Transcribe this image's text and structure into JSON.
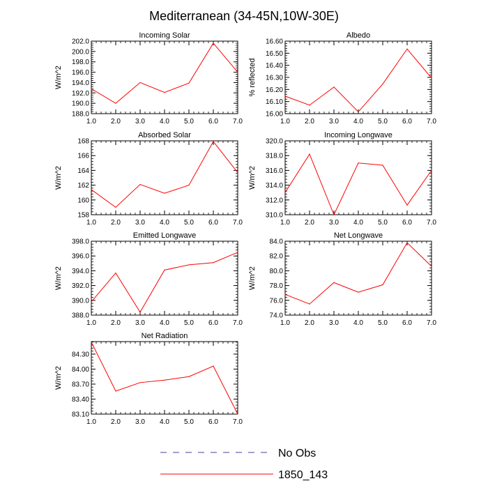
{
  "figure": {
    "title": "Mediterranean (34-45N,10W-30E)"
  },
  "legend": {
    "entries": [
      {
        "label": "No Obs",
        "color": "#4040a0",
        "style": "dashed"
      },
      {
        "label": "1850_143",
        "color": "#ff0000",
        "style": "solid"
      }
    ]
  },
  "chart_data": [
    {
      "type": "line",
      "title": "Incoming Solar",
      "xlabel": "",
      "ylabel": "W/m^2",
      "x": [
        1,
        2,
        3,
        4,
        5,
        6,
        7
      ],
      "xlim": [
        1,
        7
      ],
      "xticks": [
        "1.0",
        "2.0",
        "3.0",
        "4.0",
        "5.0",
        "6.0",
        "7.0"
      ],
      "ylim": [
        188,
        202
      ],
      "yticks": [
        188,
        190,
        192,
        194,
        196,
        198,
        200,
        202
      ],
      "ytick_labels": [
        "188.0",
        "190.0",
        "192.0",
        "194.0",
        "196.0",
        "198.0",
        "200.0",
        "202.0"
      ],
      "series": [
        {
          "name": "1850_143",
          "color": "#ff0000",
          "values": [
            192.8,
            190.0,
            194.0,
            192.1,
            193.9,
            201.6,
            196.0
          ]
        }
      ]
    },
    {
      "type": "line",
      "title": "Albedo",
      "xlabel": "",
      "ylabel": "% reflected",
      "x": [
        1,
        2,
        3,
        4,
        5,
        6,
        7
      ],
      "xlim": [
        1,
        7
      ],
      "xticks": [
        "1.0",
        "2.0",
        "3.0",
        "4.0",
        "5.0",
        "6.0",
        "7.0"
      ],
      "ylim": [
        16.0,
        16.6
      ],
      "yticks": [
        16.0,
        16.1,
        16.2,
        16.3,
        16.4,
        16.5,
        16.6
      ],
      "ytick_labels": [
        "16.00",
        "16.10",
        "16.20",
        "16.30",
        "16.40",
        "16.50",
        "16.60"
      ],
      "series": [
        {
          "name": "1850_143",
          "color": "#ff0000",
          "values": [
            16.145,
            16.07,
            16.22,
            16.015,
            16.245,
            16.535,
            16.295
          ]
        }
      ]
    },
    {
      "type": "line",
      "title": "Absorbed Solar",
      "xlabel": "",
      "ylabel": "W/m^2",
      "x": [
        1,
        2,
        3,
        4,
        5,
        6,
        7
      ],
      "xlim": [
        1,
        7
      ],
      "xticks": [
        "1.0",
        "2.0",
        "3.0",
        "4.0",
        "5.0",
        "6.0",
        "7.0"
      ],
      "ylim": [
        158,
        168
      ],
      "yticks": [
        158,
        160,
        162,
        164,
        166,
        168
      ],
      "ytick_labels": [
        "158",
        "160",
        "162",
        "164",
        "166",
        "168"
      ],
      "series": [
        {
          "name": "1850_143",
          "color": "#ff0000",
          "values": [
            161.4,
            159.0,
            162.1,
            160.9,
            162.0,
            167.9,
            163.7
          ]
        }
      ]
    },
    {
      "type": "line",
      "title": "Incoming Longwave",
      "xlabel": "",
      "ylabel": "W/m^2",
      "x": [
        1,
        2,
        3,
        4,
        5,
        6,
        7
      ],
      "xlim": [
        1,
        7
      ],
      "xticks": [
        "1.0",
        "2.0",
        "3.0",
        "4.0",
        "5.0",
        "6.0",
        "7.0"
      ],
      "ylim": [
        310,
        320
      ],
      "yticks": [
        310,
        312,
        314,
        316,
        318,
        320
      ],
      "ytick_labels": [
        "310.0",
        "312.0",
        "314.0",
        "316.0",
        "318.0",
        "320.0"
      ],
      "series": [
        {
          "name": "1850_143",
          "color": "#ff0000",
          "values": [
            313.0,
            318.2,
            310.0,
            317.0,
            316.7,
            311.3,
            316.0
          ]
        }
      ]
    },
    {
      "type": "line",
      "title": "Emitted Longwave",
      "xlabel": "",
      "ylabel": "W/m^2",
      "x": [
        1,
        2,
        3,
        4,
        5,
        6,
        7
      ],
      "xlim": [
        1,
        7
      ],
      "xticks": [
        "1.0",
        "2.0",
        "3.0",
        "4.0",
        "5.0",
        "6.0",
        "7.0"
      ],
      "ylim": [
        388,
        398
      ],
      "yticks": [
        388,
        390,
        392,
        394,
        396,
        398
      ],
      "ytick_labels": [
        "388.0",
        "390.0",
        "392.0",
        "394.0",
        "396.0",
        "398.0"
      ],
      "series": [
        {
          "name": "1850_143",
          "color": "#ff0000",
          "values": [
            389.8,
            393.7,
            388.4,
            394.1,
            394.8,
            395.1,
            396.5
          ]
        }
      ]
    },
    {
      "type": "line",
      "title": "Net Longwave",
      "xlabel": "",
      "ylabel": "W/m^2",
      "x": [
        1,
        2,
        3,
        4,
        5,
        6,
        7
      ],
      "xlim": [
        1,
        7
      ],
      "xticks": [
        "1.0",
        "2.0",
        "3.0",
        "4.0",
        "5.0",
        "6.0",
        "7.0"
      ],
      "ylim": [
        74,
        84
      ],
      "yticks": [
        74,
        76,
        78,
        80,
        82,
        84
      ],
      "ytick_labels": [
        "74.0",
        "76.0",
        "78.0",
        "80.0",
        "82.0",
        "84.0"
      ],
      "series": [
        {
          "name": "1850_143",
          "color": "#ff0000",
          "values": [
            76.8,
            75.5,
            78.4,
            77.1,
            78.1,
            83.8,
            80.6
          ]
        }
      ]
    },
    {
      "type": "line",
      "title": "Net Radiation",
      "xlabel": "",
      "ylabel": "W/m^2",
      "x": [
        1,
        2,
        3,
        4,
        5,
        6,
        7
      ],
      "xlim": [
        1,
        7
      ],
      "xticks": [
        "1.0",
        "2.0",
        "3.0",
        "4.0",
        "5.0",
        "6.0",
        "7.0"
      ],
      "ylim": [
        83.1,
        84.55
      ],
      "yticks": [
        83.1,
        83.4,
        83.7,
        84.0,
        84.3
      ],
      "ytick_labels": [
        "83.10",
        "83.40",
        "83.70",
        "84.00",
        "84.30"
      ],
      "series": [
        {
          "name": "1850_143",
          "color": "#ff0000",
          "values": [
            84.54,
            83.56,
            83.73,
            83.78,
            83.85,
            84.06,
            83.1
          ]
        }
      ]
    }
  ]
}
